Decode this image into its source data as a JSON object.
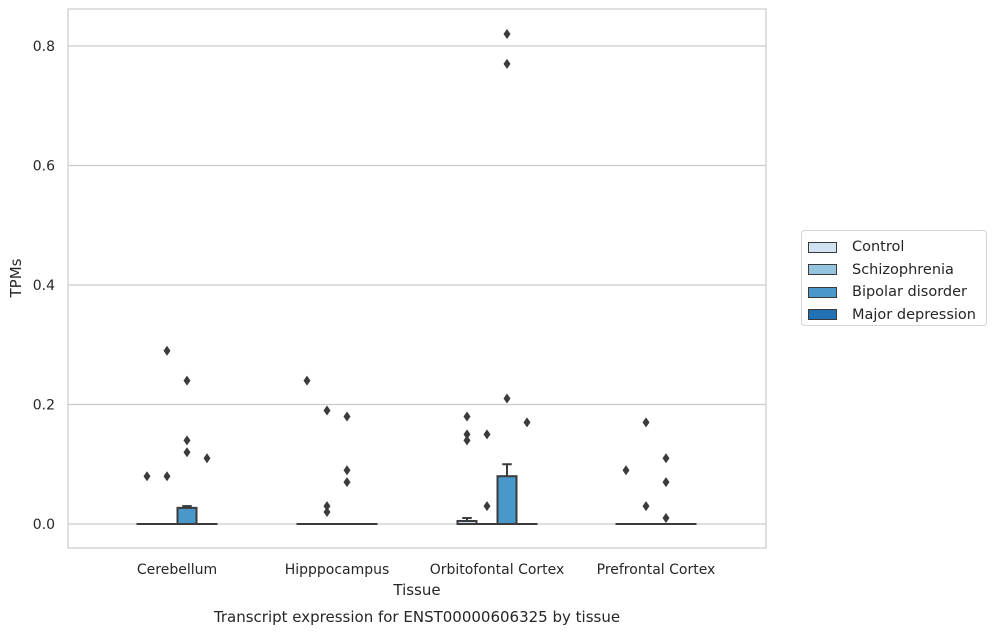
{
  "chart_data": {
    "type": "box",
    "title": "Transcript expression for ENST00000606325 by tissue",
    "xlabel": "Tissue",
    "ylabel": "TPMs",
    "categories": [
      "Cerebellum",
      "Hipppocampus",
      "Orbitofontal Cortex",
      "Prefrontal Cortex"
    ],
    "yticks": [
      "0.0",
      "0.2",
      "0.4",
      "0.6",
      "0.8"
    ],
    "ylim": [
      -0.04,
      0.86
    ],
    "grid": "horizontal",
    "legend_position": "right",
    "series": [
      {
        "name": "Control",
        "color": "#d0e1f2",
        "boxes": [
          {
            "q1": 0,
            "median": 0,
            "q3": 0,
            "whisker_low": 0,
            "whisker_high": 0,
            "outliers": [
              0.08
            ]
          },
          {
            "q1": 0,
            "median": 0,
            "q3": 0,
            "whisker_low": 0,
            "whisker_high": 0,
            "outliers": [
              0.24
            ]
          },
          {
            "q1": 0,
            "median": 0,
            "q3": 0.005,
            "whisker_low": 0,
            "whisker_high": 0.01,
            "outliers": [
              0.18,
              0.15,
              0.14
            ]
          },
          {
            "q1": 0,
            "median": 0,
            "q3": 0,
            "whisker_low": 0,
            "whisker_high": 0,
            "outliers": [
              0.09
            ]
          }
        ]
      },
      {
        "name": "Schizophrenia",
        "color": "#94c4df",
        "boxes": [
          {
            "q1": 0,
            "median": 0,
            "q3": 0,
            "whisker_low": 0,
            "whisker_high": 0,
            "outliers": [
              0.29,
              0.08
            ]
          },
          {
            "q1": 0,
            "median": 0,
            "q3": 0,
            "whisker_low": 0,
            "whisker_high": 0,
            "outliers": [
              0.19,
              0.03,
              0.02
            ]
          },
          {
            "q1": 0,
            "median": 0,
            "q3": 0,
            "whisker_low": 0,
            "whisker_high": 0,
            "outliers": [
              0.15,
              0.03
            ]
          },
          {
            "q1": 0,
            "median": 0,
            "q3": 0,
            "whisker_low": 0,
            "whisker_high": 0,
            "outliers": [
              0.17,
              0.03
            ]
          }
        ]
      },
      {
        "name": "Bipolar disorder",
        "color": "#4a98c9",
        "boxes": [
          {
            "q1": 0,
            "median": 0,
            "q3": 0.027,
            "whisker_low": 0,
            "whisker_high": 0.03,
            "outliers": [
              0.24,
              0.14,
              0.12
            ]
          },
          {
            "q1": 0,
            "median": 0,
            "q3": 0,
            "whisker_low": 0,
            "whisker_high": 0,
            "outliers": [
              0.18,
              0.09,
              0.07
            ]
          },
          {
            "q1": 0,
            "median": 0,
            "q3": 0.08,
            "whisker_low": 0,
            "whisker_high": 0.1,
            "outliers": [
              0.82,
              0.77,
              0.21
            ]
          },
          {
            "q1": 0,
            "median": 0,
            "q3": 0,
            "whisker_low": 0,
            "whisker_high": 0,
            "outliers": [
              0.11,
              0.07,
              0.01
            ]
          }
        ]
      },
      {
        "name": "Major depression",
        "color": "#2171b5",
        "boxes": [
          {
            "q1": 0,
            "median": 0,
            "q3": 0,
            "whisker_low": 0,
            "whisker_high": 0,
            "outliers": [
              0.11
            ]
          },
          {
            "q1": 0,
            "median": 0,
            "q3": 0,
            "whisker_low": 0,
            "whisker_high": 0,
            "outliers": []
          },
          {
            "q1": 0,
            "median": 0,
            "q3": 0,
            "whisker_low": 0,
            "whisker_high": 0,
            "outliers": [
              0.17
            ]
          },
          {
            "q1": 0,
            "median": 0,
            "q3": 0,
            "whisker_low": 0,
            "whisker_high": 0,
            "outliers": []
          }
        ]
      }
    ]
  }
}
